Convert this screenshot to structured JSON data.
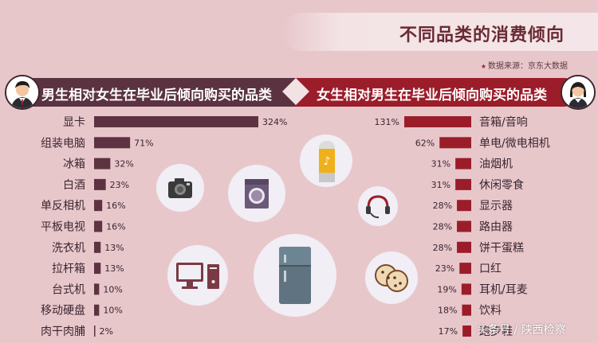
{
  "title": "不同品类的消费倾向",
  "source": "数据来源：京东大数据",
  "left_header": "男生相对女生在毕业后倾向购买的品类",
  "right_header": "女生相对男生在毕业后倾向购买的品类",
  "watermark": "头条号 / 陕西检察",
  "colors": {
    "left_bar": "#5d3342",
    "right_bar": "#9b1d2a",
    "background": "#e8c7cb"
  },
  "chart_data": [
    {
      "type": "bar",
      "orientation": "horizontal",
      "title": "男生相对女生在毕业后倾向购买的品类",
      "categories": [
        "显卡",
        "组装电脑",
        "冰箱",
        "白酒",
        "单反相机",
        "平板电视",
        "洗衣机",
        "拉杆箱",
        "台式机",
        "移动硬盘",
        "肉干肉脯"
      ],
      "values": [
        324,
        71,
        32,
        23,
        16,
        16,
        13,
        13,
        10,
        10,
        2
      ],
      "value_labels": [
        "324%",
        "71%",
        "32%",
        "23%",
        "16%",
        "16%",
        "13%",
        "13%",
        "10%",
        "10%",
        "2%"
      ],
      "unit": "%"
    },
    {
      "type": "bar",
      "orientation": "horizontal",
      "title": "女生相对男生在毕业后倾向购买的品类",
      "categories": [
        "音箱/音响",
        "单电/微电相机",
        "油烟机",
        "休闲零食",
        "显示器",
        "路由器",
        "饼干蛋糕",
        "口红",
        "耳机/耳麦",
        "饮料",
        "跑步鞋"
      ],
      "values": [
        131,
        62,
        31,
        31,
        28,
        28,
        28,
        23,
        19,
        18,
        17
      ],
      "value_labels": [
        "131%",
        "62%",
        "31%",
        "31%",
        "28%",
        "28%",
        "28%",
        "23%",
        "19%",
        "18%",
        "17%"
      ],
      "unit": "%"
    }
  ],
  "icons": [
    "camera-icon",
    "washing-machine-icon",
    "smart-speaker-icon",
    "headset-icon",
    "desktop-computer-icon",
    "refrigerator-icon",
    "cookies-icon"
  ]
}
